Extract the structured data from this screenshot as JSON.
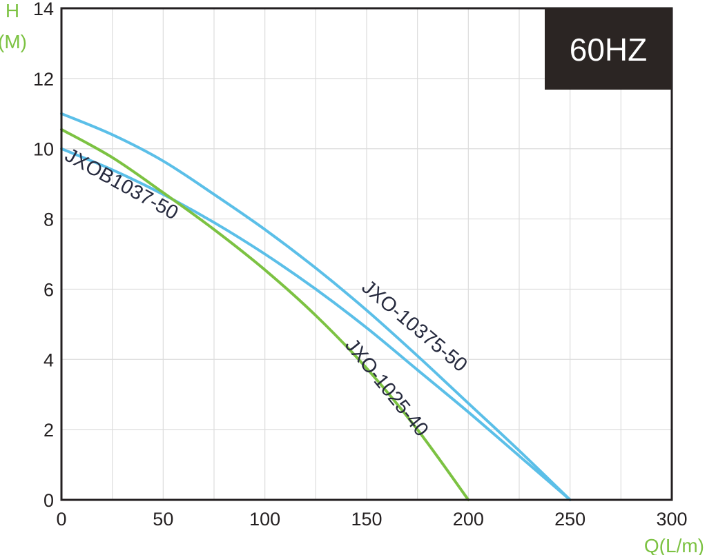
{
  "chart_data": {
    "type": "line",
    "badge": "60HZ",
    "y_label_top": "H",
    "y_label_unit": "(M)",
    "xlabel": "Q(L/m)",
    "xlim": [
      0,
      300
    ],
    "ylim": [
      0,
      14
    ],
    "x_ticks": [
      0,
      50,
      100,
      150,
      200,
      250,
      300
    ],
    "y_ticks": [
      0,
      2,
      4,
      6,
      8,
      10,
      12,
      14
    ],
    "grid": true,
    "series": [
      {
        "name": "JXO-10375-50",
        "color": "#5bbfe8",
        "points": [
          [
            0,
            11.0
          ],
          [
            25,
            10.4
          ],
          [
            50,
            9.65
          ],
          [
            75,
            8.7
          ],
          [
            100,
            7.7
          ],
          [
            125,
            6.6
          ],
          [
            150,
            5.4
          ],
          [
            175,
            4.1
          ],
          [
            200,
            2.75
          ],
          [
            225,
            1.4
          ],
          [
            250,
            0
          ]
        ]
      },
      {
        "name": "JXOB1037-50",
        "color": "#5bbfe8",
        "points": [
          [
            0,
            10.0
          ],
          [
            25,
            9.4
          ],
          [
            50,
            8.7
          ],
          [
            75,
            7.9
          ],
          [
            100,
            7.0
          ],
          [
            125,
            6.0
          ],
          [
            150,
            4.9
          ],
          [
            175,
            3.7
          ],
          [
            200,
            2.5
          ],
          [
            225,
            1.25
          ],
          [
            250,
            0
          ]
        ]
      },
      {
        "name": "JXO-1025-40",
        "color": "#7cc242",
        "points": [
          [
            0,
            10.55
          ],
          [
            25,
            9.75
          ],
          [
            50,
            8.75
          ],
          [
            75,
            7.7
          ],
          [
            100,
            6.55
          ],
          [
            125,
            5.25
          ],
          [
            150,
            3.75
          ],
          [
            175,
            2.0
          ],
          [
            200,
            0
          ]
        ]
      }
    ],
    "curve_labels": [
      {
        "series": "JXO-10375-50",
        "text": "JXO-10375-50",
        "at": [
          147,
          6.0
        ],
        "angle": 40
      },
      {
        "series": "JXOB1037-50",
        "text": "JXOB1037-50",
        "at": [
          1,
          9.7
        ],
        "angle": 29
      },
      {
        "series": "JXO-1025-40",
        "text": "JXO-1025-40",
        "at": [
          139,
          4.4
        ],
        "angle": 51
      }
    ]
  }
}
